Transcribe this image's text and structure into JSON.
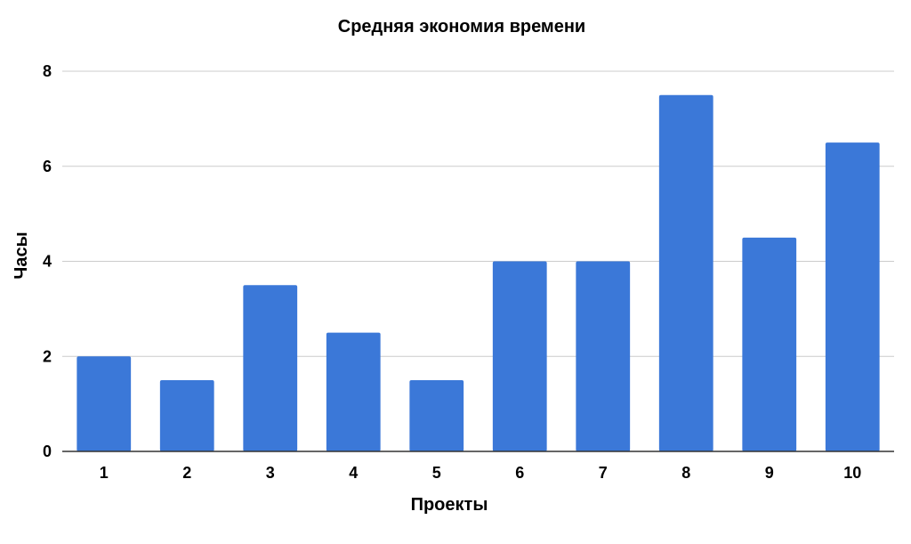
{
  "chart_data": {
    "type": "bar",
    "title": "Средняя экономия времени",
    "xlabel": "Проекты",
    "ylabel": "Часы",
    "categories": [
      "1",
      "2",
      "3",
      "4",
      "5",
      "6",
      "7",
      "8",
      "9",
      "10"
    ],
    "values": [
      2,
      1.5,
      3.5,
      2.5,
      1.5,
      4,
      4,
      7.5,
      4.5,
      6.5
    ],
    "ylim": [
      0,
      8
    ],
    "yticks": [
      "0",
      "2",
      "4",
      "6",
      "8"
    ],
    "grid": true,
    "legend": "none",
    "bar_color": "#3b78d8"
  }
}
